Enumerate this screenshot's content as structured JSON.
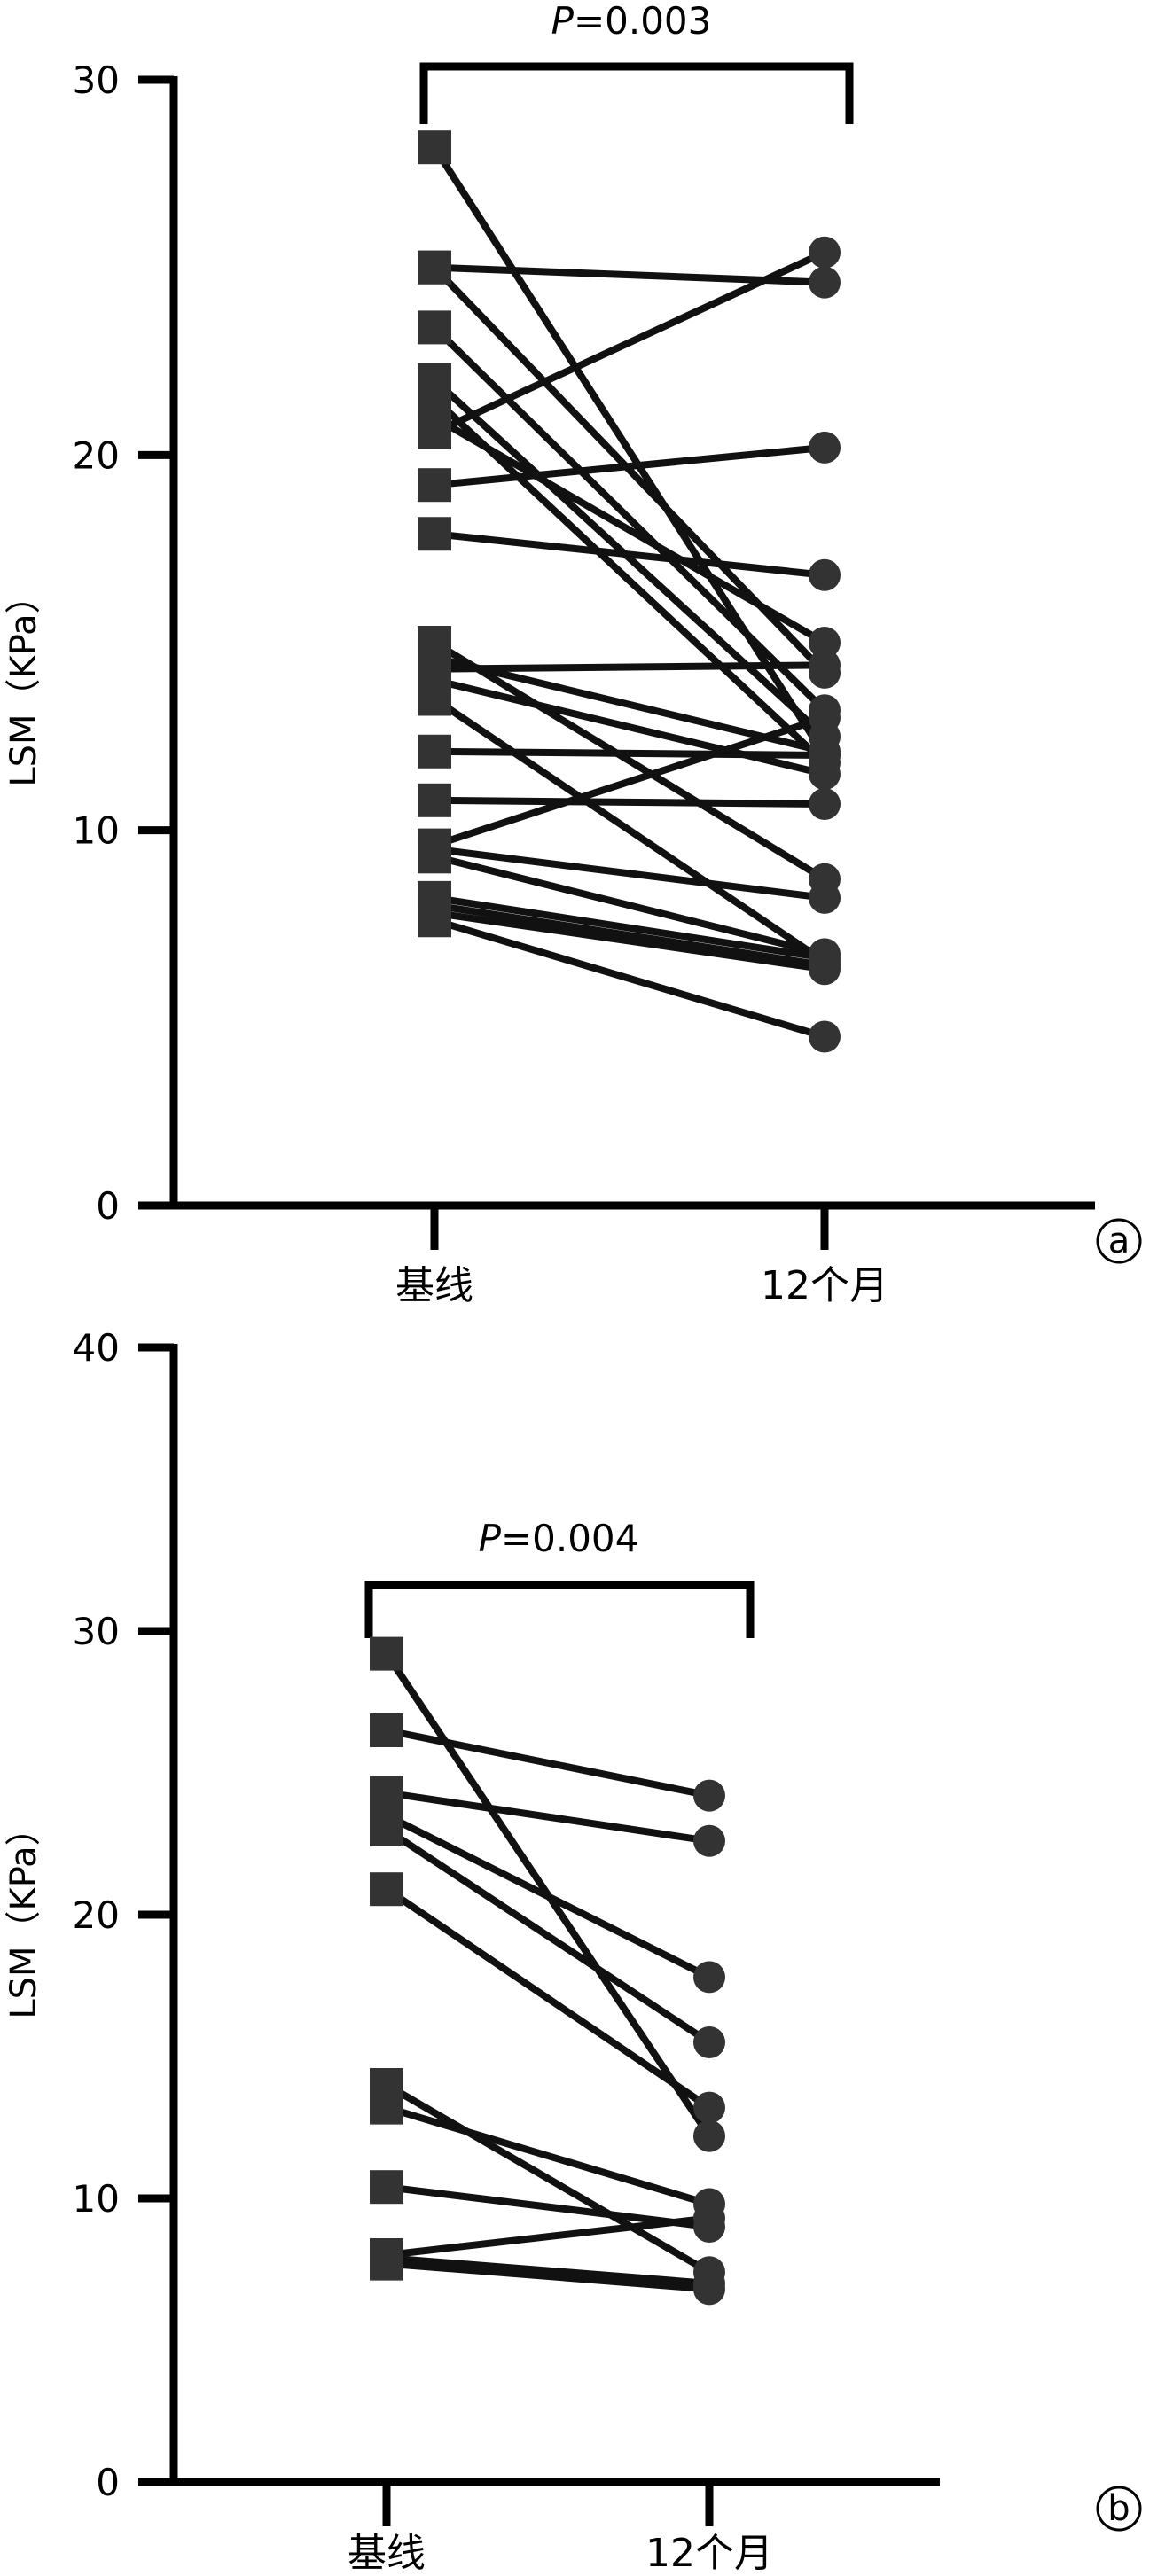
{
  "chart_data": [
    {
      "type": "line",
      "panel_label": "a",
      "ylabel": "LSM（KPa）",
      "ylim": [
        0,
        30
      ],
      "yticks": [
        "0",
        "10",
        "20",
        "30"
      ],
      "categories": [
        "基线",
        "12个月"
      ],
      "comparison": {
        "prefix": "P",
        "text": "=0.003"
      },
      "marker_baseline": "square",
      "marker_followup": "circle",
      "line_color": "#111111",
      "pairs": [
        [
          28.2,
          12.0
        ],
        [
          25.0,
          24.6
        ],
        [
          25.0,
          14.2
        ],
        [
          23.4,
          13.2
        ],
        [
          22.0,
          12.5
        ],
        [
          21.5,
          11.8
        ],
        [
          21.0,
          15.0
        ],
        [
          20.6,
          25.4
        ],
        [
          19.2,
          20.2
        ],
        [
          17.9,
          16.8
        ],
        [
          15.0,
          8.7
        ],
        [
          14.6,
          12.1
        ],
        [
          14.3,
          14.4
        ],
        [
          14.0,
          11.5
        ],
        [
          13.5,
          6.5
        ],
        [
          12.1,
          12.0
        ],
        [
          10.8,
          10.7
        ],
        [
          9.6,
          13.0
        ],
        [
          9.5,
          8.2
        ],
        [
          9.3,
          6.7
        ],
        [
          8.2,
          6.6
        ],
        [
          8.0,
          6.4
        ],
        [
          7.8,
          6.3
        ],
        [
          7.6,
          4.5
        ]
      ]
    },
    {
      "type": "line",
      "panel_label": "b",
      "ylabel": "LSM（KPa）",
      "ylim": [
        0,
        40
      ],
      "yticks": [
        "0",
        "10",
        "20",
        "30",
        "40"
      ],
      "categories": [
        "基线",
        "12个月"
      ],
      "comparison": {
        "prefix": "P",
        "text": "=0.004"
      },
      "marker_baseline": "square",
      "marker_followup": "circle",
      "line_color": "#111111",
      "pairs": [
        [
          29.2,
          12.2
        ],
        [
          26.5,
          24.2
        ],
        [
          24.3,
          22.6
        ],
        [
          23.5,
          17.8
        ],
        [
          23.0,
          15.5
        ],
        [
          20.9,
          13.2
        ],
        [
          14.0,
          7.4
        ],
        [
          13.2,
          9.8
        ],
        [
          10.4,
          9.0
        ],
        [
          8.0,
          9.3
        ],
        [
          7.9,
          7.0
        ],
        [
          7.7,
          6.8
        ]
      ]
    }
  ]
}
